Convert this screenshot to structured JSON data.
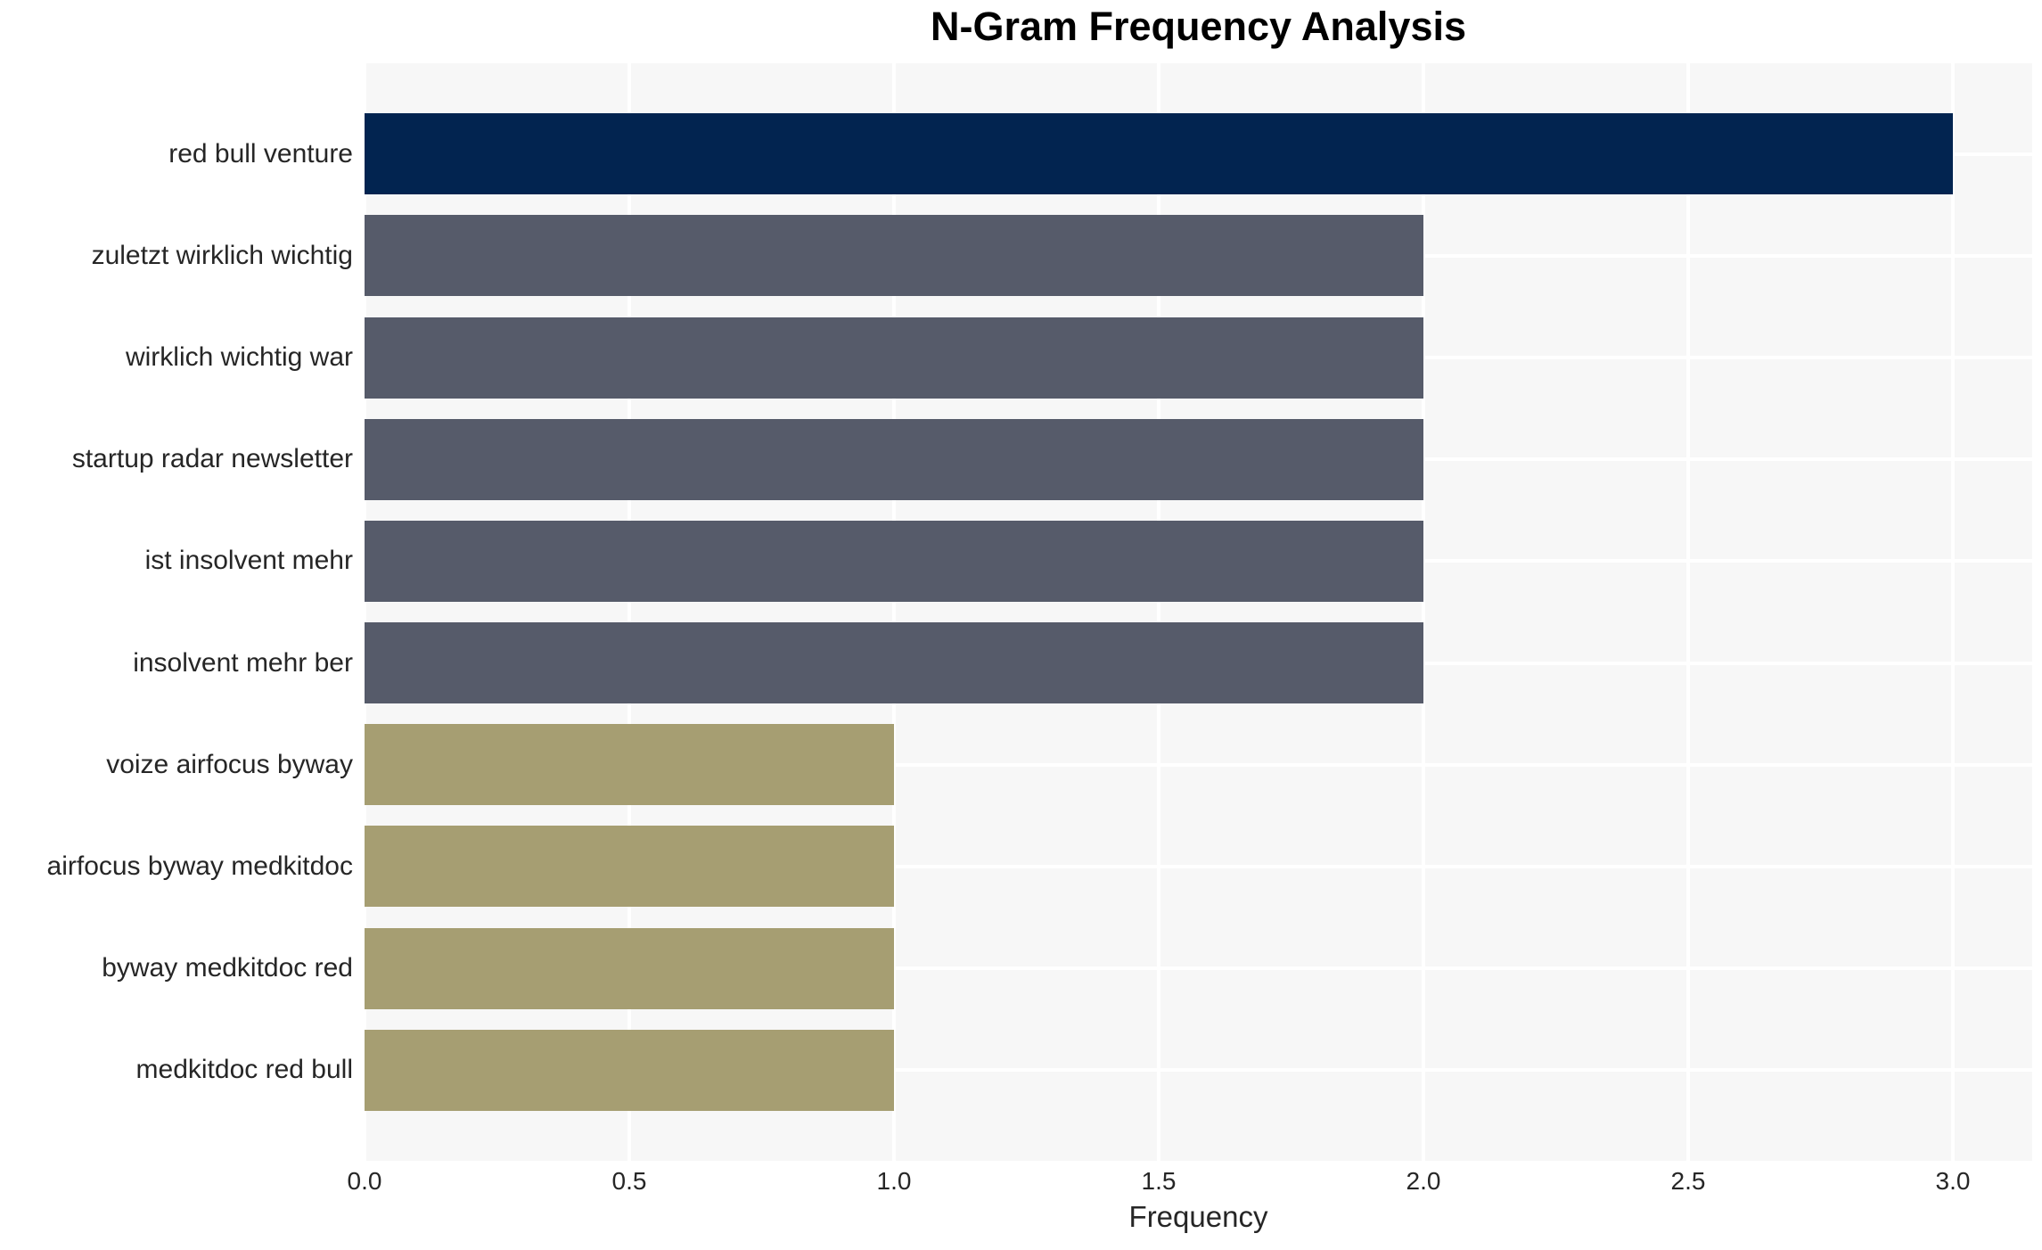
{
  "chart_data": {
    "type": "bar",
    "orientation": "horizontal",
    "title": "N-Gram Frequency Analysis",
    "xlabel": "Frequency",
    "ylabel": "",
    "categories": [
      "red bull venture",
      "zuletzt wirklich wichtig",
      "wirklich wichtig war",
      "startup radar newsletter",
      "ist insolvent mehr",
      "insolvent mehr ber",
      "voize airfocus byway",
      "airfocus byway medkitdoc",
      "byway medkitdoc red",
      "medkitdoc red bull"
    ],
    "values": [
      3,
      2,
      2,
      2,
      2,
      2,
      1,
      1,
      1,
      1
    ],
    "bar_colors": [
      "#022450",
      "#565b6a",
      "#565b6a",
      "#565b6a",
      "#565b6a",
      "#565b6a",
      "#a69e72",
      "#a69e72",
      "#a69e72",
      "#a69e72"
    ],
    "xlim": [
      0,
      3.15
    ],
    "xticks": [
      0.0,
      0.5,
      1.0,
      1.5,
      2.0,
      2.5,
      3.0
    ],
    "xtick_labels": [
      "0.0",
      "0.5",
      "1.0",
      "1.5",
      "2.0",
      "2.5",
      "3.0"
    ],
    "grid": true,
    "legend": "none",
    "plot_background": "#f7f7f7",
    "grid_color": "#ffffff"
  }
}
